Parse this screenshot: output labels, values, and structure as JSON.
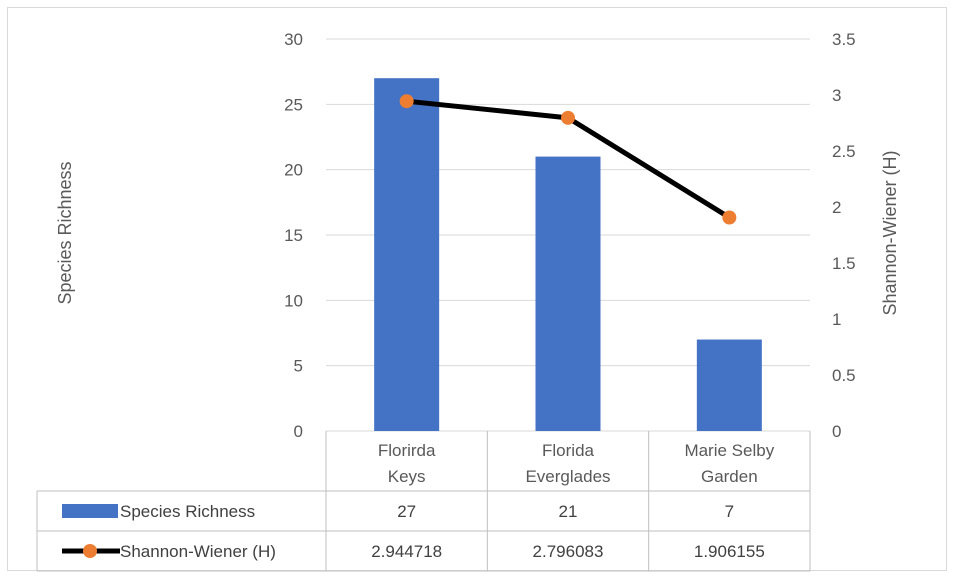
{
  "chart_data": {
    "type": "bar",
    "categories": [
      [
        "Florirda",
        "Keys"
      ],
      [
        "Florida",
        "Everglades"
      ],
      [
        "Marie Selby",
        "Garden"
      ]
    ],
    "series": [
      {
        "name": "Species Richness",
        "type": "bar",
        "axis": "left",
        "values": [
          27,
          21,
          7
        ],
        "display_values": [
          "27",
          "21",
          "7"
        ],
        "color": "#4472C4"
      },
      {
        "name": "Shannon-Wiener (H)",
        "type": "line",
        "axis": "right",
        "values": [
          2.944718,
          2.796083,
          1.906155
        ],
        "display_values": [
          "2.944718",
          "2.796083",
          "1.906155"
        ],
        "line_color": "#000000",
        "marker_color": "#ED7D31"
      }
    ],
    "ylabel": "Species Richness",
    "y2label": "Shannon-Wiener (H)",
    "ylim": [
      0,
      30
    ],
    "y2lim": [
      0,
      3.5
    ],
    "yticks": [
      "0",
      "5",
      "10",
      "15",
      "20",
      "25",
      "30"
    ],
    "y2ticks": [
      "0",
      "0.5",
      "1",
      "1.5",
      "2",
      "2.5",
      "3",
      "3.5"
    ],
    "grid": true,
    "legend": "data table below chart"
  }
}
